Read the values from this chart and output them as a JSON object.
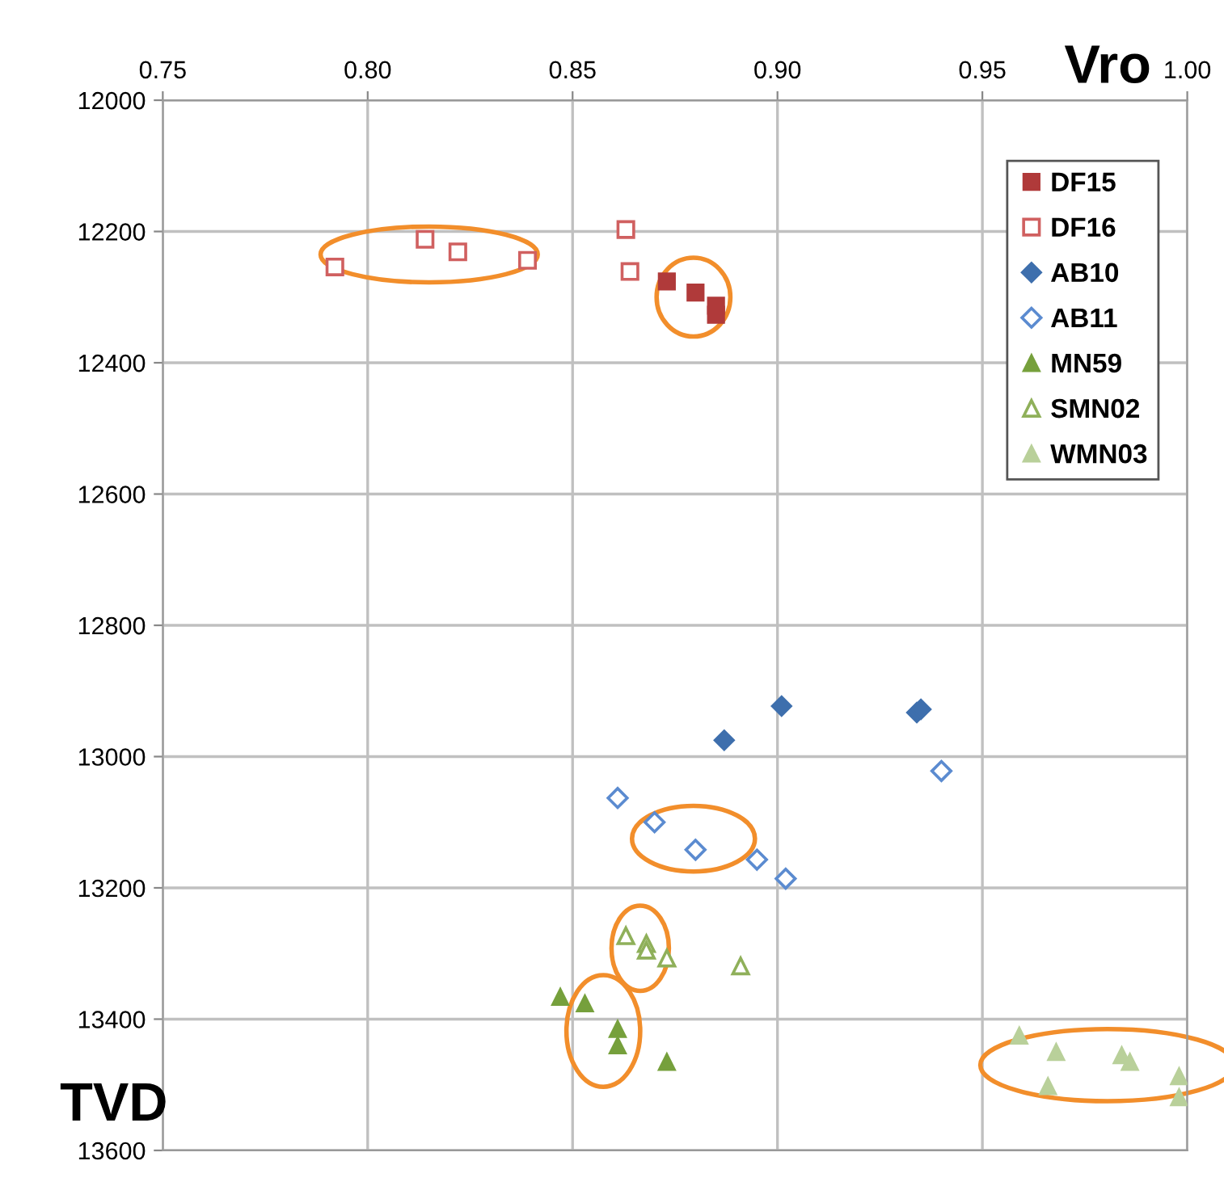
{
  "chart_data": {
    "type": "scatter",
    "xlabel": "Vro",
    "ylabel": "TVD",
    "xlim": [
      0.75,
      1.0
    ],
    "xticks": [
      {
        "value": 0.75,
        "label": "0.75"
      },
      {
        "value": 0.8,
        "label": "0.80"
      },
      {
        "value": 0.85,
        "label": "0.85"
      },
      {
        "value": 0.9,
        "label": "0.90"
      },
      {
        "value": 0.95,
        "label": "0.95"
      },
      {
        "value": 1.0,
        "label": "1.00"
      }
    ],
    "ylim": [
      13600,
      12000
    ],
    "yticks": [
      12000,
      12200,
      12400,
      12600,
      12800,
      13000,
      13200,
      13400,
      13600
    ],
    "grid": true,
    "legend": "top right",
    "series": [
      {
        "name": "DF15",
        "color": "#b03a3a",
        "marker": "square",
        "x": [
          0.873,
          0.88,
          0.885,
          0.885
        ],
        "values": [
          12276,
          12293,
          12313,
          12327
        ]
      },
      {
        "name": "DF16",
        "color": "#d06060",
        "marker": "square",
        "x": [
          0.792,
          0.814,
          0.822,
          0.839,
          0.863,
          0.864
        ],
        "values": [
          12254,
          12212,
          12231,
          12244,
          12197,
          12261
        ]
      },
      {
        "name": "AB10",
        "color": "#3e6fad",
        "marker": "diamond",
        "x": [
          0.887,
          0.901,
          0.934,
          0.935
        ],
        "values": [
          12975,
          12923,
          12933,
          12928
        ]
      },
      {
        "name": "AB11",
        "color": "#5b8bd0",
        "marker": "diamond",
        "x": [
          0.861,
          0.87,
          0.88,
          0.895,
          0.902,
          0.94
        ],
        "values": [
          13063,
          13100,
          13142,
          13157,
          13186,
          13022
        ]
      },
      {
        "name": "MN59",
        "color": "#76a03c",
        "marker": "triangle",
        "x": [
          0.847,
          0.853,
          0.861,
          0.861,
          0.873
        ],
        "values": [
          13366,
          13376,
          13415,
          13440,
          13465
        ]
      },
      {
        "name": "SMN02",
        "color": "#8fb05a",
        "marker": "triangle",
        "x": [
          0.863,
          0.868,
          0.868,
          0.873,
          0.891
        ],
        "values": [
          13273,
          13285,
          13295,
          13307,
          13319
        ]
      },
      {
        "name": "WMN03",
        "color": "#b9d09a",
        "marker": "triangle",
        "x": [
          0.959,
          0.966,
          0.968,
          0.984,
          0.986,
          0.998,
          0.998
        ],
        "values": [
          13425,
          13502,
          13450,
          13455,
          13465,
          13487,
          13519
        ]
      }
    ]
  }
}
